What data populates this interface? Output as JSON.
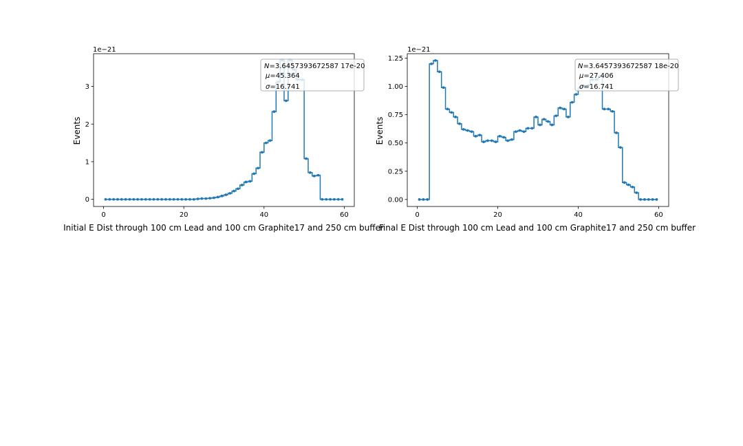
{
  "colors": {
    "line": "#1f77b4",
    "axis": "#000000",
    "legend_border": "#999999"
  },
  "chart_data": [
    {
      "type": "line",
      "drawstyle": "steps-mid",
      "markers": true,
      "title": "",
      "xlabel": "Initial E Dist through 100 cm Lead and 100 cm Graphite17 and 250 cm buffer",
      "ylabel": "Events",
      "offset_text": "1e−21",
      "xlim": [
        -2.5,
        62.5
      ],
      "ylim": [
        -0.19,
        3.87
      ],
      "xticks": [
        0,
        20,
        40,
        60
      ],
      "xtick_labels": [
        "0",
        "20",
        "40",
        "60"
      ],
      "yticks": [
        0,
        1,
        2,
        3
      ],
      "ytick_labels": [
        "0",
        "1",
        "2",
        "3"
      ],
      "grid": false,
      "legend": {
        "placement": "upper right",
        "lines": [
          "$N$=3.6457393672587 17e-20",
          "$\\mu$=45.364",
          "$\\sigma$=16.741"
        ]
      },
      "x": [
        0.5,
        1.5,
        2.5,
        3.5,
        4.5,
        5.5,
        6.5,
        7.5,
        8.5,
        9.5,
        10.5,
        11.5,
        12.5,
        13.5,
        14.5,
        15.5,
        16.5,
        17.5,
        18.5,
        19.5,
        20.5,
        21.5,
        22.5,
        23.5,
        24.5,
        25.5,
        26.5,
        27.5,
        28.5,
        29.5,
        30.5,
        31.5,
        32.5,
        33.5,
        34.5,
        35.5,
        36.5,
        37.5,
        38.5,
        39.5,
        40.5,
        41.5,
        42.5,
        43.5,
        44.5,
        45.5,
        46.5,
        47.5,
        48.5,
        49.5,
        50.5,
        51.5,
        52.5,
        53.5,
        54.5,
        55.5,
        56.5,
        57.5,
        58.5,
        59.5
      ],
      "series": [
        {
          "values": [
            0,
            0,
            0,
            0,
            0,
            0,
            0,
            0,
            0,
            0,
            0,
            0,
            0,
            0,
            0,
            0,
            0,
            0,
            0,
            0,
            0,
            0,
            0,
            0.01,
            0.02,
            0.02,
            0.03,
            0.04,
            0.06,
            0.09,
            0.12,
            0.16,
            0.22,
            0.28,
            0.38,
            0.46,
            0.48,
            0.68,
            0.83,
            1.25,
            1.5,
            1.56,
            2.33,
            3.12,
            3.7,
            2.62,
            3.7,
            3.45,
            3.18,
            3.18,
            1.08,
            0.71,
            0.62,
            0.64,
            0,
            0,
            0,
            0,
            0,
            0
          ]
        }
      ]
    },
    {
      "type": "line",
      "drawstyle": "steps-mid",
      "markers": true,
      "title": "",
      "xlabel": "Final E Dist through 100 cm Lead and 100 cm Graphite17 and 250 cm buffer",
      "ylabel": "Events",
      "offset_text": "1e−21",
      "xlim": [
        -2.5,
        62.5
      ],
      "ylim": [
        -0.062,
        1.29
      ],
      "xticks": [
        0,
        20,
        40,
        60
      ],
      "xtick_labels": [
        "0",
        "20",
        "40",
        "60"
      ],
      "yticks": [
        0,
        0.25,
        0.5,
        0.75,
        1.0,
        1.25
      ],
      "ytick_labels": [
        "0.00",
        "0.25",
        "0.50",
        "0.75",
        "1.00",
        "1.25"
      ],
      "grid": false,
      "legend": {
        "placement": "upper right",
        "lines": [
          "$N$=3.6457393672587 18e-20",
          "$\\mu$=27.406",
          "$\\sigma$=16.741"
        ]
      },
      "x": [
        0.5,
        1.5,
        2.5,
        3.5,
        4.5,
        5.5,
        6.5,
        7.5,
        8.5,
        9.5,
        10.5,
        11.5,
        12.5,
        13.5,
        14.5,
        15.5,
        16.5,
        17.5,
        18.5,
        19.5,
        20.5,
        21.5,
        22.5,
        23.5,
        24.5,
        25.5,
        26.5,
        27.5,
        28.5,
        29.5,
        30.5,
        31.5,
        32.5,
        33.5,
        34.5,
        35.5,
        36.5,
        37.5,
        38.5,
        39.5,
        40.5,
        41.5,
        42.5,
        43.5,
        44.5,
        45.5,
        46.5,
        47.5,
        48.5,
        49.5,
        50.5,
        51.5,
        52.5,
        53.5,
        54.5,
        55.5,
        56.5,
        57.5,
        58.5,
        59.5
      ],
      "series": [
        {
          "values": [
            0,
            0,
            0,
            1.2,
            1.23,
            1.13,
            0.99,
            0.8,
            0.77,
            0.73,
            0.67,
            0.62,
            0.61,
            0.6,
            0.56,
            0.57,
            0.51,
            0.52,
            0.52,
            0.51,
            0.56,
            0.55,
            0.52,
            0.53,
            0.6,
            0.61,
            0.6,
            0.63,
            0.63,
            0.73,
            0.66,
            0.71,
            0.69,
            0.66,
            0.74,
            0.81,
            0.8,
            0.73,
            0.86,
            0.93,
            0.99,
            1.0,
            1.01,
            1.06,
            1.06,
            1.09,
            0.8,
            0.8,
            0.78,
            0.59,
            0.46,
            0.15,
            0.13,
            0.11,
            0.06,
            0,
            0,
            0,
            0,
            0
          ]
        }
      ]
    }
  ]
}
